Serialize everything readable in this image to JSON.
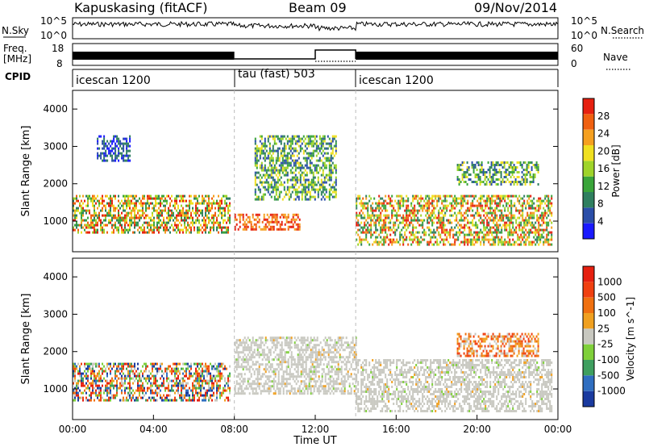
{
  "header": {
    "station": "Kapuskasing (fitACF)",
    "beam": "Beam 09",
    "date": "09/Nov/2014"
  },
  "panels": {
    "nsky_label": "N.Sky",
    "nsearch_label": "N.Search",
    "nsky_ticks": [
      "10^5",
      "10^0"
    ],
    "nsearch_ticks": [
      "10^5",
      "10^0"
    ],
    "freq_label_line1": "Freq.",
    "freq_label_line2": "[MHz]",
    "freq_ticks": [
      "18",
      "8"
    ],
    "nave_label": "Nave",
    "nave_ticks": [
      "60",
      "0"
    ],
    "cpid_label": "CPID"
  },
  "cpid_segments": [
    {
      "label": "icescan 1200",
      "start_hour": 0,
      "end_hour": 8
    },
    {
      "label": "tau (fast) 503",
      "start_hour": 8,
      "end_hour": 14
    },
    {
      "label": "icescan 1200",
      "start_hour": 14,
      "end_hour": 24
    }
  ],
  "chart_data": [
    {
      "type": "heatmap",
      "quantity": "Power",
      "ylabel": "Slant Range [km]",
      "xlabel": "",
      "xlim": [
        0,
        24
      ],
      "ylim": [
        180,
        4500
      ],
      "yticks": [
        1000,
        2000,
        3000,
        4000
      ],
      "colorbar": {
        "label": "Power [dB]",
        "ticks": [
          "28",
          "24",
          "20",
          "16",
          "12",
          "8",
          "4"
        ],
        "colors": [
          "#1a1aff",
          "#2b4ea8",
          "#2f7f5f",
          "#3aa53a",
          "#9fd42a",
          "#f0e020",
          "#f5a020",
          "#f06010",
          "#e62010"
        ]
      },
      "echo_regions": [
        {
          "start_hour": 0.0,
          "end_hour": 7.8,
          "range_min_km": 700,
          "range_max_km": 1700,
          "level": "mid-high"
        },
        {
          "start_hour": 1.2,
          "end_hour": 2.8,
          "range_min_km": 2600,
          "range_max_km": 3300,
          "level": "low"
        },
        {
          "start_hour": 8.0,
          "end_hour": 11.2,
          "range_min_km": 800,
          "range_max_km": 1200,
          "level": "high"
        },
        {
          "start_hour": 9.0,
          "end_hour": 13.0,
          "range_min_km": 1600,
          "range_max_km": 3300,
          "level": "mid"
        },
        {
          "start_hour": 14.0,
          "end_hour": 23.7,
          "range_min_km": 400,
          "range_max_km": 1700,
          "level": "mid-high"
        },
        {
          "start_hour": 19.0,
          "end_hour": 23.0,
          "range_min_km": 2000,
          "range_max_km": 2600,
          "level": "mid"
        }
      ]
    },
    {
      "type": "heatmap",
      "quantity": "Velocity",
      "ylabel": "Slant Range [km]",
      "xlabel": "Time UT",
      "xlim": [
        0,
        24
      ],
      "ylim": [
        180,
        4500
      ],
      "xticks": [
        "00:00",
        "04:00",
        "08:00",
        "12:00",
        "16:00",
        "20:00",
        "00:00"
      ],
      "yticks": [
        1000,
        2000,
        3000,
        4000
      ],
      "colorbar": {
        "label": "Velocity [m s^-1]",
        "ticks": [
          "1000",
          "500",
          "100",
          "25",
          "-25",
          "-100",
          "-500",
          "-1000"
        ],
        "colors": [
          "#1a3a9f",
          "#2f6ec0",
          "#3f9f5f",
          "#7fd03a",
          "#c8c8c0",
          "#f0a020",
          "#f07010",
          "#f04010",
          "#e62010"
        ]
      },
      "echo_regions": [
        {
          "start_hour": 0.0,
          "end_hour": 7.8,
          "range_min_km": 700,
          "range_max_km": 1700,
          "level": "mixed"
        },
        {
          "start_hour": 8.0,
          "end_hour": 14.0,
          "range_min_km": 900,
          "range_max_km": 2400,
          "level": "near-zero"
        },
        {
          "start_hour": 14.0,
          "end_hour": 23.7,
          "range_min_km": 400,
          "range_max_km": 1800,
          "level": "near-zero"
        },
        {
          "start_hour": 19.0,
          "end_hour": 23.0,
          "range_min_km": 1900,
          "range_max_km": 2500,
          "level": "negative"
        }
      ]
    }
  ]
}
